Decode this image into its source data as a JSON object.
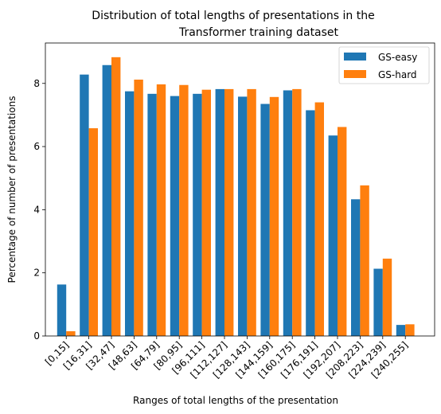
{
  "chart_data": {
    "type": "bar",
    "title_lines": [
      "Distribution of total lengths of presentations in the",
      "Transformer training dataset"
    ],
    "xlabel": "Ranges of total lengths of the presentation",
    "ylabel": "Percentage of number of presentations",
    "categories": [
      "[0,15]",
      "[16,31]",
      "[32,47]",
      "[48,63]",
      "[64,79]",
      "[80,95]",
      "[96,111]",
      "[112,127]",
      "[128,143]",
      "[144,159]",
      "[160,175]",
      "[176,191]",
      "[192,207]",
      "[208,223]",
      "[224,239]",
      "[240,255]"
    ],
    "series": [
      {
        "name": "GS-easy",
        "color": "#1f77b4",
        "values": [
          1.63,
          8.28,
          8.58,
          7.75,
          7.67,
          7.6,
          7.67,
          7.82,
          7.58,
          7.35,
          7.78,
          7.15,
          6.35,
          4.33,
          2.13,
          0.35
        ]
      },
      {
        "name": "GS-hard",
        "color": "#ff7f0e",
        "values": [
          0.15,
          6.58,
          8.83,
          8.12,
          7.97,
          7.95,
          7.8,
          7.82,
          7.82,
          7.57,
          7.82,
          7.4,
          6.62,
          4.77,
          2.45,
          0.37
        ]
      }
    ],
    "yticks": [
      0,
      2,
      4,
      6,
      8
    ],
    "ylim": [
      0,
      9.28
    ],
    "legend_position": "top-right",
    "grid": false
  }
}
